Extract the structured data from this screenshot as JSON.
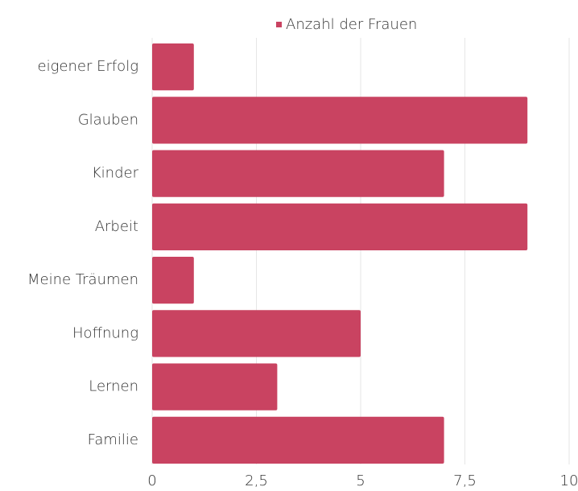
{
  "chart_data": {
    "type": "hbar",
    "categories": [
      "eigener Erfolg",
      "Glauben",
      "Kinder",
      "Arbeit",
      "Meine Träumen",
      "Hoffnung",
      "Lernen",
      "Familie"
    ],
    "series": [
      {
        "name": "Anzahl der Frauen",
        "color": "#c94361",
        "values": [
          1,
          9,
          7,
          9,
          1,
          5,
          3,
          7
        ]
      }
    ],
    "xlim": [
      0,
      10
    ],
    "xticks": [
      0,
      {
        "value": 2.5,
        "label": "2,5"
      },
      5,
      {
        "value": 7.5,
        "label": "7,5"
      },
      10
    ],
    "grid": true,
    "legend": "top"
  }
}
